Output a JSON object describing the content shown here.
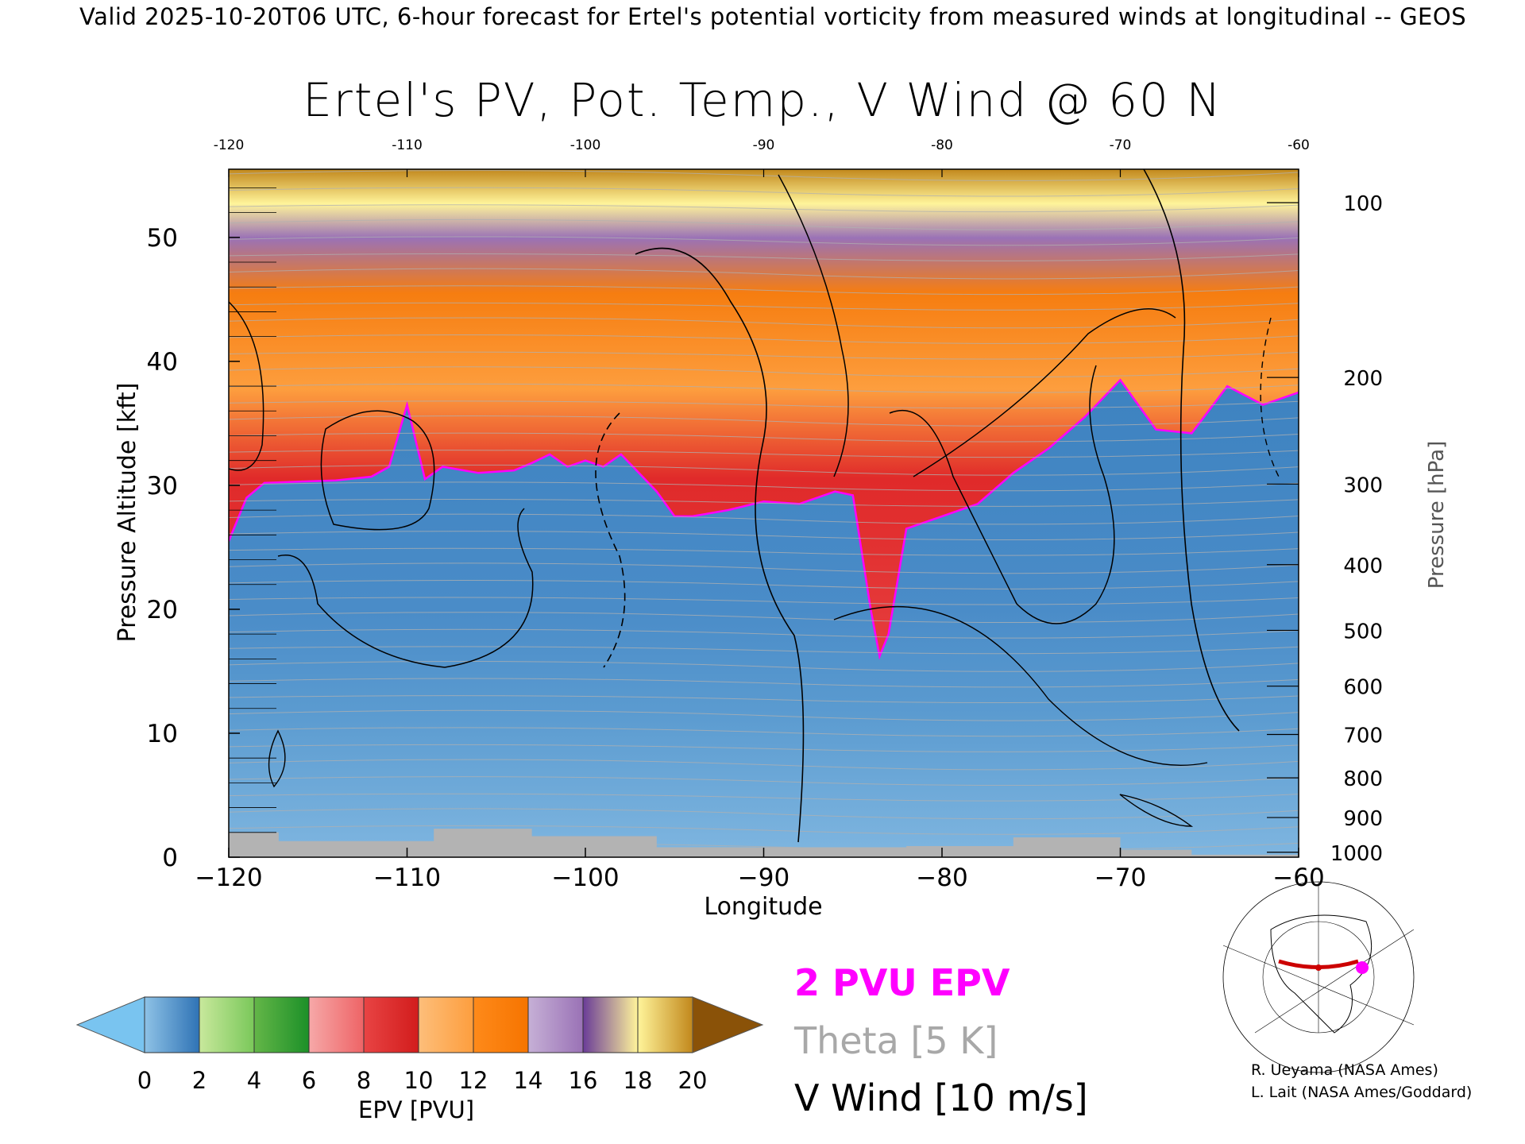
{
  "header": {
    "validity_line": "Valid 2025-10-20T06 UTC, 6-hour forecast for Ertel's potential vorticity from measured winds at longitudinal -- GEOS"
  },
  "chart_data": {
    "type": "heatmap",
    "title": "Ertel's PV, Pot. Temp., V Wind @ 60 N",
    "xlabel": "Longitude",
    "ylabel_left": "Pressure Altitude [kft]",
    "ylabel_right": "Pressure [hPa]",
    "x_range": [
      -120,
      -60
    ],
    "y_range_kft": [
      0,
      55.5
    ],
    "x_ticks": [
      -120,
      -110,
      -100,
      -90,
      -80,
      -70,
      -60
    ],
    "x_tick_labels": [
      "−120",
      "−110",
      "−100",
      "−90",
      "−80",
      "−70",
      "−60"
    ],
    "top_tick_labels": [
      "-120",
      "-110",
      "-100",
      "-90",
      "-80",
      "-70",
      "-60"
    ],
    "y_ticks_kft": [
      0,
      10,
      20,
      30,
      40,
      50
    ],
    "y_tick_labels_kft": [
      "0",
      "10",
      "20",
      "30",
      "40",
      "50"
    ],
    "right_ticks": [
      {
        "label": "100",
        "kft": 52.8
      },
      {
        "label": "200",
        "kft": 38.7
      },
      {
        "label": "300",
        "kft": 30.1
      },
      {
        "label": "400",
        "kft": 23.6
      },
      {
        "label": "500",
        "kft": 18.3
      },
      {
        "label": "600",
        "kft": 13.8
      },
      {
        "label": "700",
        "kft": 9.9
      },
      {
        "label": "800",
        "kft": 6.4
      },
      {
        "label": "900",
        "kft": 3.2
      },
      {
        "label": "1000",
        "kft": 0.4
      }
    ],
    "pv_2pvu_boundary_kft": [
      [
        -120,
        25.5
      ],
      [
        -119,
        29
      ],
      [
        -118,
        30.2
      ],
      [
        -116,
        30.3
      ],
      [
        -114,
        30.4
      ],
      [
        -112,
        30.7
      ],
      [
        -111,
        31.5
      ],
      [
        -110,
        36.5
      ],
      [
        -109,
        30.5
      ],
      [
        -108,
        31.5
      ],
      [
        -106,
        31
      ],
      [
        -104,
        31.2
      ],
      [
        -103,
        31.8
      ],
      [
        -102,
        32.5
      ],
      [
        -101,
        31.5
      ],
      [
        -100,
        32
      ],
      [
        -99,
        31.5
      ],
      [
        -98,
        32.5
      ],
      [
        -97,
        31
      ],
      [
        -96,
        29.5
      ],
      [
        -95,
        27.5
      ],
      [
        -94,
        27.5
      ],
      [
        -92,
        28
      ],
      [
        -90,
        28.7
      ],
      [
        -88,
        28.5
      ],
      [
        -86,
        29.5
      ],
      [
        -85,
        29.2
      ],
      [
        -84,
        20
      ],
      [
        -83.5,
        16.2
      ],
      [
        -83,
        18
      ],
      [
        -82,
        26.5
      ],
      [
        -80,
        27.5
      ],
      [
        -78,
        28.5
      ],
      [
        -76,
        31
      ],
      [
        -74,
        33
      ],
      [
        -72,
        35.5
      ],
      [
        -70,
        38.5
      ],
      [
        -68,
        34.5
      ],
      [
        -66,
        34.2
      ],
      [
        -64,
        38
      ],
      [
        -62,
        36.5
      ],
      [
        -60,
        37.5
      ]
    ],
    "theta_contour_label": "Theta [5 K]",
    "vwind_contour_label": "V Wind [10 m/s]",
    "pv_contour_label": "2 PVU EPV",
    "colorbar": {
      "label": "EPV [PVU]",
      "ticks": [
        "0",
        "2",
        "4",
        "6",
        "8",
        "10",
        "12",
        "14",
        "16",
        "18",
        "20"
      ],
      "colors": {
        "under": "#79c4f0",
        "0-2": [
          "#8ec2e6",
          "#2f73b5"
        ],
        "2-4": [
          "#c8e89c",
          "#7ac85a"
        ],
        "4-6": [
          "#64b648",
          "#1c9028"
        ],
        "6-8": [
          "#f6a8a8",
          "#ee6466"
        ],
        "8-10": [
          "#e84444",
          "#d21c1c"
        ],
        "10-12": [
          "#fdbe7a",
          "#fd9e3e"
        ],
        "12-14": [
          "#fe8a1a",
          "#f67400"
        ],
        "14-16": [
          "#c6b0d6",
          "#9a72b6"
        ],
        "16-18": [
          "#6a3c98",
          "#fff49a"
        ],
        "18-20": [
          "#fff49a",
          "#c2881c"
        ],
        "over": "#8a5208"
      }
    },
    "grid": false
  },
  "legend": {
    "epv": "2 PVU EPV",
    "theta": "Theta [5 K]",
    "vwind": "V Wind [10 m/s]"
  },
  "credits": {
    "line1": "R. Ueyama (NASA Ames)",
    "line2": "L. Lait (NASA Ames/Goddard)"
  },
  "inset_map": {
    "markers": {
      "section_color": "#cc0000",
      "point_color": "#ff00ff"
    }
  }
}
